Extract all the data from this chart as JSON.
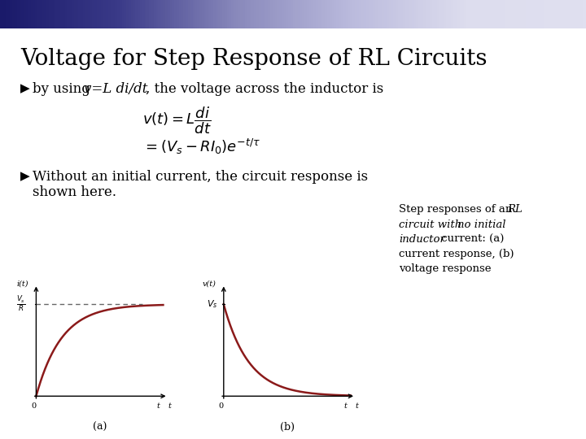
{
  "title": "Voltage for Step Response of RL Circuits",
  "title_fontsize": 20,
  "title_color": "#000000",
  "background_color": "#ffffff",
  "bullet_fontsize": 12,
  "eq_fontsize": 13,
  "curve_color": "#8b1a1a",
  "dashed_color": "#666666",
  "axis_color": "#000000",
  "label_a": "(a)",
  "label_b": "(b)",
  "tau": 1.0,
  "header_left_color": "#1a1a6a",
  "header_right_color": "#e0e0f0",
  "square_color": "#1a1a4a",
  "caption_fontsize": 9.5
}
